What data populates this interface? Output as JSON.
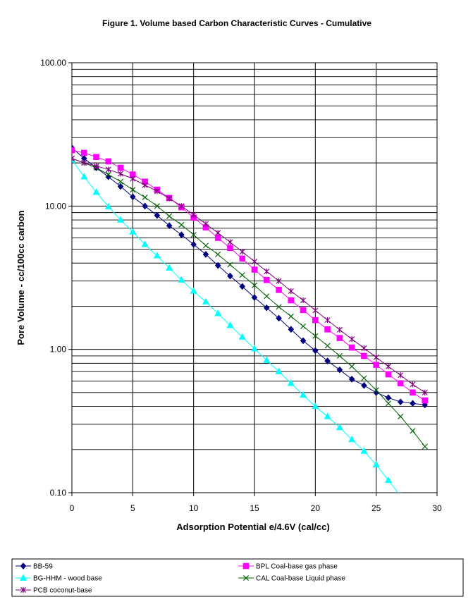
{
  "chart_data": {
    "type": "line",
    "title": "Figure 1. Volume based Carbon Characteristic Curves - Cumulative",
    "xlabel": "Adsorption Potential e/4.6V (cal/cc)",
    "ylabel": "Pore Volume - cc/100cc carbon",
    "xlim": [
      0,
      30
    ],
    "ylim": [
      0.1,
      100
    ],
    "yscale": "log",
    "grid": true,
    "legend_position": "bottom",
    "x_ticks": [
      "0",
      "5",
      "10",
      "15",
      "20",
      "25",
      "30"
    ],
    "y_ticks": [
      "0.10",
      "1.00",
      "10.00",
      "100.00"
    ],
    "series": [
      {
        "name": "BB-59",
        "color": "#000080",
        "marker": "diamond",
        "x": [
          0,
          1,
          2,
          3,
          4,
          5,
          6,
          7,
          8,
          9,
          10,
          11,
          12,
          13,
          14,
          15,
          16,
          17,
          18,
          19,
          20,
          21,
          22,
          23,
          24,
          25,
          26,
          27,
          28,
          29
        ],
        "y": [
          25.5,
          21.5,
          18.5,
          16,
          13.7,
          11.6,
          10,
          8.6,
          7.3,
          6.3,
          5.4,
          4.6,
          3.85,
          3.25,
          2.75,
          2.3,
          1.95,
          1.65,
          1.38,
          1.15,
          0.98,
          0.83,
          0.72,
          0.62,
          0.56,
          0.5,
          0.46,
          0.43,
          0.42,
          0.41
        ]
      },
      {
        "name": "BPL Coal-base gas phase",
        "color": "#ff00ff",
        "marker": "square",
        "x": [
          0,
          1,
          2,
          3,
          4,
          5,
          6,
          7,
          8,
          9,
          10,
          11,
          12,
          13,
          14,
          15,
          16,
          17,
          18,
          19,
          20,
          21,
          22,
          23,
          24,
          25,
          26,
          27,
          28,
          29
        ],
        "y": [
          24.5,
          23.5,
          22,
          20.5,
          18.5,
          16.6,
          14.8,
          13,
          11.4,
          9.8,
          8.3,
          7.1,
          6,
          5.1,
          4.3,
          3.6,
          3.05,
          2.6,
          2.2,
          1.88,
          1.6,
          1.38,
          1.2,
          1.03,
          0.9,
          0.78,
          0.67,
          0.58,
          0.5,
          0.44
        ]
      },
      {
        "name": "BG-HHM - wood base",
        "color": "#00ffff",
        "marker": "triangle",
        "x": [
          0,
          1,
          2,
          3,
          4,
          5,
          6,
          7,
          8,
          9,
          10,
          11,
          12,
          13,
          14,
          15,
          16,
          17,
          18,
          19,
          20,
          21,
          22,
          23,
          24,
          25,
          26,
          27
        ],
        "y": [
          21,
          16,
          12.5,
          9.9,
          8,
          6.6,
          5.4,
          4.5,
          3.7,
          3.05,
          2.55,
          2.15,
          1.78,
          1.47,
          1.22,
          1.01,
          0.84,
          0.7,
          0.58,
          0.48,
          0.4,
          0.34,
          0.285,
          0.235,
          0.195,
          0.157,
          0.122,
          0.095
        ]
      },
      {
        "name": "CAL Coal-base Liquid phase",
        "color": "#006400",
        "marker": "x",
        "x": [
          0,
          1,
          2,
          3,
          4,
          5,
          6,
          7,
          8,
          9,
          10,
          11,
          12,
          13,
          14,
          15,
          16,
          17,
          18,
          19,
          20,
          21,
          22,
          23,
          24,
          25,
          26,
          27,
          28,
          29
        ],
        "y": [
          21.5,
          20,
          18.5,
          16.6,
          14.8,
          13,
          11.5,
          10,
          8.5,
          7.4,
          6.3,
          5.3,
          4.6,
          3.9,
          3.3,
          2.8,
          2.35,
          1.98,
          1.7,
          1.45,
          1.24,
          1.06,
          0.9,
          0.76,
          0.63,
          0.52,
          0.42,
          0.34,
          0.27,
          0.21
        ]
      },
      {
        "name": "PCB coconut-base",
        "color": "#800080",
        "marker": "star",
        "x": [
          0,
          1,
          2,
          3,
          4,
          5,
          6,
          7,
          8,
          9,
          10,
          11,
          12,
          13,
          14,
          15,
          16,
          17,
          18,
          19,
          20,
          21,
          22,
          23,
          24,
          25,
          26,
          27,
          28,
          29
        ],
        "y": [
          21.5,
          20,
          19,
          18,
          16.8,
          15.5,
          14,
          12.7,
          11.3,
          10,
          8.7,
          7.5,
          6.5,
          5.6,
          4.8,
          4.1,
          3.5,
          3,
          2.55,
          2.2,
          1.87,
          1.6,
          1.37,
          1.18,
          1.02,
          0.88,
          0.76,
          0.66,
          0.57,
          0.5
        ]
      }
    ]
  }
}
